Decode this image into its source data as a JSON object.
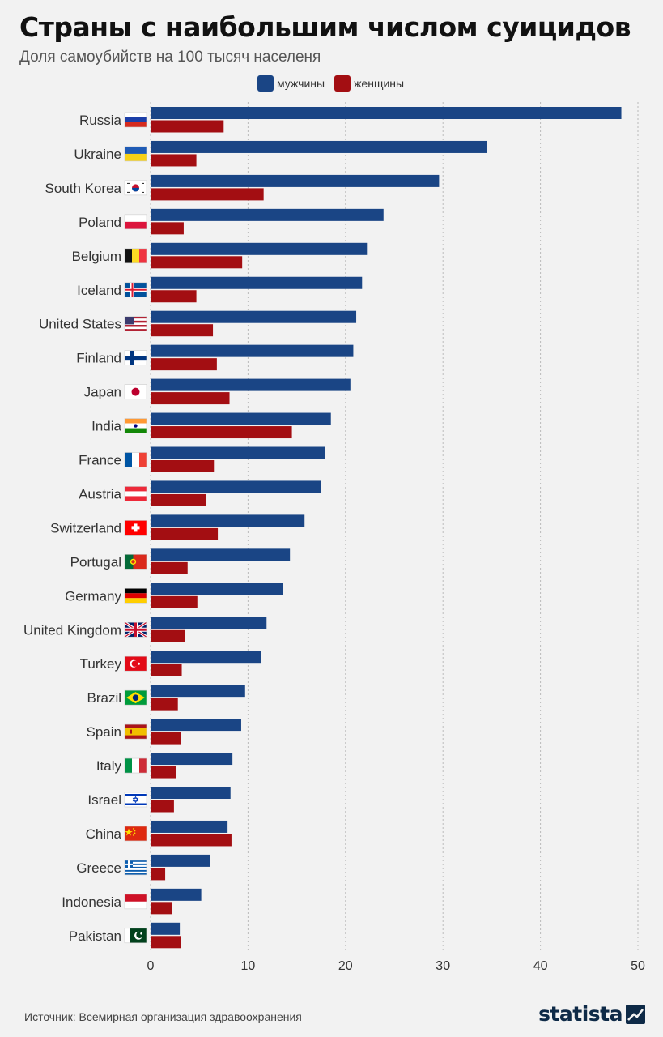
{
  "header": {
    "title": "Страны с наибольшим числом суицидов",
    "subtitle": "Доля самоубийств на 100 тысяч населеня"
  },
  "footer": {
    "source": "Источник: Всемирная организация здравоохранения",
    "brand": "statista"
  },
  "colors": {
    "male": "#1a4585",
    "female": "#a30e12",
    "grid": "#bbbbbb"
  },
  "chart_data": {
    "type": "bar",
    "orientation": "horizontal",
    "categories": [
      "Russia",
      "Ukraine",
      "South Korea",
      "Poland",
      "Belgium",
      "Iceland",
      "United States",
      "Finland",
      "Japan",
      "India",
      "France",
      "Austria",
      "Switzerland",
      "Portugal",
      "Germany",
      "United Kingdom",
      "Turkey",
      "Brazil",
      "Spain",
      "Italy",
      "Israel",
      "China",
      "Greece",
      "Indonesia",
      "Pakistan"
    ],
    "series": [
      {
        "name": "мужчины",
        "color": "#1a4585",
        "values": [
          48.3,
          34.5,
          29.6,
          23.9,
          22.2,
          21.7,
          21.1,
          20.8,
          20.5,
          18.5,
          17.9,
          17.5,
          15.8,
          14.3,
          13.6,
          11.9,
          11.3,
          9.7,
          9.3,
          8.4,
          8.2,
          7.9,
          6.1,
          5.2,
          3.0
        ]
      },
      {
        "name": "женщины",
        "color": "#a30e12",
        "values": [
          7.5,
          4.7,
          11.6,
          3.4,
          9.4,
          4.7,
          6.4,
          6.8,
          8.1,
          14.5,
          6.5,
          5.7,
          6.9,
          3.8,
          4.8,
          3.5,
          3.2,
          2.8,
          3.1,
          2.6,
          2.4,
          8.3,
          1.5,
          2.2,
          3.1
        ]
      }
    ],
    "xlim": [
      0,
      50
    ],
    "xticks": [
      0,
      10,
      20,
      30,
      40,
      50
    ],
    "grid": "vertical dashed",
    "legend": "top-center",
    "title": "Страны с наибольшим числом суицидов",
    "subtitle": "Доля самоубийств на 100 тысяч населеня",
    "xlabel": "",
    "ylabel": ""
  },
  "flags": [
    "russia-flag-icon",
    "ukraine-flag-icon",
    "south-korea-flag-icon",
    "poland-flag-icon",
    "belgium-flag-icon",
    "iceland-flag-icon",
    "united-states-flag-icon",
    "finland-flag-icon",
    "japan-flag-icon",
    "india-flag-icon",
    "france-flag-icon",
    "austria-flag-icon",
    "switzerland-flag-icon",
    "portugal-flag-icon",
    "germany-flag-icon",
    "united-kingdom-flag-icon",
    "turkey-flag-icon",
    "brazil-flag-icon",
    "spain-flag-icon",
    "italy-flag-icon",
    "israel-flag-icon",
    "china-flag-icon",
    "greece-flag-icon",
    "indonesia-flag-icon",
    "pakistan-flag-icon"
  ]
}
